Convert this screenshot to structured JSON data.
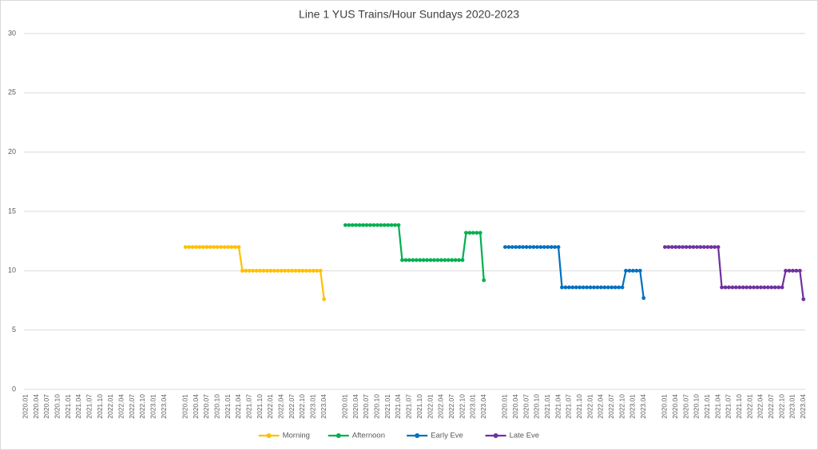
{
  "chart_data": {
    "type": "line",
    "title": "Line 1 YUS Trains/Hour Sundays 2020-2023",
    "categories": [
      "2020.01",
      null,
      null,
      "2020.04",
      null,
      null,
      "2020.07",
      null,
      null,
      "2020.10",
      null,
      null,
      "2021.01",
      null,
      null,
      "2021.04",
      null,
      null,
      "2021.07",
      null,
      null,
      "2021.10",
      null,
      null,
      "2022.01",
      null,
      null,
      "2022.04",
      null,
      null,
      "2022.07",
      null,
      null,
      "2022.10",
      null,
      null,
      "2023.01",
      null,
      null,
      "2023.04",
      null,
      null,
      null,
      null,
      null,
      "2020.01",
      null,
      null,
      "2020.04",
      null,
      null,
      "2020.07",
      null,
      null,
      "2020.10",
      null,
      null,
      "2021.01",
      null,
      null,
      "2021.04",
      null,
      null,
      "2021.07",
      null,
      null,
      "2021.10",
      null,
      null,
      "2022.01",
      null,
      null,
      "2022.04",
      null,
      null,
      "2022.07",
      null,
      null,
      "2022.10",
      null,
      null,
      "2023.01",
      null,
      null,
      "2023.04",
      null,
      null,
      null,
      null,
      null,
      "2020.01",
      null,
      null,
      "2020.04",
      null,
      null,
      "2020.07",
      null,
      null,
      "2020.10",
      null,
      null,
      "2021.01",
      null,
      null,
      "2021.04",
      null,
      null,
      "2021.07",
      null,
      null,
      "2021.10",
      null,
      null,
      "2022.01",
      null,
      null,
      "2022.04",
      null,
      null,
      "2022.07",
      null,
      null,
      "2022.10",
      null,
      null,
      "2023.01",
      null,
      null,
      "2023.04",
      null,
      null,
      null,
      null,
      null,
      "2020.01",
      null,
      null,
      "2020.04",
      null,
      null,
      "2020.07",
      null,
      null,
      "2020.10",
      null,
      null,
      "2021.01",
      null,
      null,
      "2021.04",
      null,
      null,
      "2021.07",
      null,
      null,
      "2021.10",
      null,
      null,
      "2022.01",
      null,
      null,
      "2022.04",
      null,
      null,
      "2022.07",
      null,
      null,
      "2022.10",
      null,
      null,
      "2023.01",
      null,
      null,
      "2023.04",
      null,
      null,
      null,
      null,
      null,
      "2020.01",
      null,
      null,
      "2020.04",
      null,
      null,
      "2020.07",
      null,
      null,
      "2020.10",
      null,
      null,
      "2021.01",
      null,
      null,
      "2021.04",
      null,
      null,
      "2021.07",
      null,
      null,
      "2021.10",
      null,
      null,
      "2022.01",
      null,
      null,
      "2022.04",
      null,
      null,
      "2022.07",
      null,
      null,
      "2022.10",
      null,
      null,
      "2023.01",
      null,
      null,
      "2023.04"
    ],
    "series": [
      {
        "name": "Morning",
        "color": "#FFC000",
        "values": [
          null,
          null,
          null,
          null,
          null,
          null,
          null,
          null,
          null,
          null,
          null,
          null,
          null,
          null,
          null,
          null,
          null,
          null,
          null,
          null,
          null,
          null,
          null,
          null,
          null,
          null,
          null,
          null,
          null,
          null,
          null,
          null,
          null,
          null,
          null,
          null,
          null,
          null,
          null,
          null,
          null,
          null,
          null,
          null,
          null,
          12,
          12,
          12,
          12,
          12,
          12,
          12,
          12,
          12,
          12,
          12,
          12,
          12,
          12,
          12,
          12,
          10,
          10,
          10,
          10,
          10,
          10,
          10,
          10,
          10,
          10,
          10,
          10,
          10,
          10,
          10,
          10,
          10,
          10,
          10,
          10,
          10,
          10,
          10,
          7.6,
          null,
          null,
          null,
          null,
          null,
          null,
          null,
          null,
          null,
          null,
          null,
          null,
          null,
          null,
          null,
          null,
          null,
          null,
          null,
          null,
          null,
          null,
          null,
          null,
          null,
          null,
          null,
          null,
          null,
          null,
          null,
          null,
          null,
          null,
          null,
          null,
          null,
          null,
          null,
          null,
          null,
          null,
          null,
          null,
          null,
          null,
          null,
          null,
          null,
          null,
          null,
          null,
          null,
          null,
          null,
          null,
          null,
          null,
          null,
          null,
          null,
          null,
          null,
          null,
          null,
          null,
          null,
          null,
          null,
          null,
          null,
          null,
          null,
          null,
          null,
          null,
          null,
          null,
          null,
          null,
          null,
          null,
          null,
          null,
          null,
          null,
          null,
          null,
          null,
          null,
          null,
          null,
          null,
          null,
          null,
          null,
          null,
          null,
          null,
          null,
          null,
          null,
          null,
          null,
          null,
          null,
          null,
          null,
          null,
          null,
          null,
          null,
          null,
          null,
          null,
          null,
          null,
          null,
          null,
          null,
          null,
          null,
          null,
          null,
          null,
          null,
          null,
          null,
          null,
          null,
          null,
          null,
          null,
          null,
          null
        ]
      },
      {
        "name": "Afternoon",
        "color": "#00B050",
        "values": [
          null,
          null,
          null,
          null,
          null,
          null,
          null,
          null,
          null,
          null,
          null,
          null,
          null,
          null,
          null,
          null,
          null,
          null,
          null,
          null,
          null,
          null,
          null,
          null,
          null,
          null,
          null,
          null,
          null,
          null,
          null,
          null,
          null,
          null,
          null,
          null,
          null,
          null,
          null,
          null,
          null,
          null,
          null,
          null,
          null,
          null,
          null,
          null,
          null,
          null,
          null,
          null,
          null,
          null,
          null,
          null,
          null,
          null,
          null,
          null,
          null,
          null,
          null,
          null,
          null,
          null,
          null,
          null,
          null,
          null,
          null,
          null,
          null,
          null,
          null,
          null,
          null,
          null,
          null,
          null,
          null,
          null,
          null,
          null,
          null,
          null,
          null,
          null,
          null,
          null,
          13.85,
          13.85,
          13.85,
          13.85,
          13.85,
          13.85,
          13.85,
          13.85,
          13.85,
          13.85,
          13.85,
          13.85,
          13.85,
          13.85,
          13.85,
          13.85,
          10.9,
          10.9,
          10.9,
          10.9,
          10.9,
          10.9,
          10.9,
          10.9,
          10.9,
          10.9,
          10.9,
          10.9,
          10.9,
          10.9,
          10.9,
          10.9,
          10.9,
          10.9,
          13.2,
          13.2,
          13.2,
          13.2,
          13.2,
          9.2,
          null,
          null,
          null,
          null,
          null,
          null,
          null,
          null,
          null,
          null,
          null,
          null,
          null,
          null,
          null,
          null,
          null,
          null,
          null,
          null,
          null,
          null,
          null,
          null,
          null,
          null,
          null,
          null,
          null,
          null,
          null,
          null,
          null,
          null,
          null,
          null,
          null,
          null,
          null,
          null,
          null,
          null,
          null,
          null,
          null,
          null,
          null,
          null,
          null,
          null,
          null,
          null,
          null,
          null,
          null,
          null,
          null,
          null,
          null,
          null,
          null,
          null,
          null,
          null,
          null,
          null,
          null,
          null,
          null,
          null,
          null,
          null,
          null,
          null,
          null,
          null,
          null,
          null,
          null,
          null,
          null,
          null,
          null,
          null,
          null,
          null,
          null,
          null,
          null,
          null
        ]
      },
      {
        "name": "Early Eve",
        "color": "#0070C0",
        "values": [
          null,
          null,
          null,
          null,
          null,
          null,
          null,
          null,
          null,
          null,
          null,
          null,
          null,
          null,
          null,
          null,
          null,
          null,
          null,
          null,
          null,
          null,
          null,
          null,
          null,
          null,
          null,
          null,
          null,
          null,
          null,
          null,
          null,
          null,
          null,
          null,
          null,
          null,
          null,
          null,
          null,
          null,
          null,
          null,
          null,
          null,
          null,
          null,
          null,
          null,
          null,
          null,
          null,
          null,
          null,
          null,
          null,
          null,
          null,
          null,
          null,
          null,
          null,
          null,
          null,
          null,
          null,
          null,
          null,
          null,
          null,
          null,
          null,
          null,
          null,
          null,
          null,
          null,
          null,
          null,
          null,
          null,
          null,
          null,
          null,
          null,
          null,
          null,
          null,
          null,
          null,
          null,
          null,
          null,
          null,
          null,
          null,
          null,
          null,
          null,
          null,
          null,
          null,
          null,
          null,
          null,
          null,
          null,
          null,
          null,
          null,
          null,
          null,
          null,
          null,
          null,
          null,
          null,
          null,
          null,
          null,
          null,
          null,
          null,
          null,
          null,
          null,
          null,
          null,
          null,
          null,
          null,
          null,
          null,
          null,
          12,
          12,
          12,
          12,
          12,
          12,
          12,
          12,
          12,
          12,
          12,
          12,
          12,
          12,
          12,
          12,
          8.6,
          8.6,
          8.6,
          8.6,
          8.6,
          8.6,
          8.6,
          8.6,
          8.6,
          8.6,
          8.6,
          8.6,
          8.6,
          8.6,
          8.6,
          8.6,
          8.6,
          8.6,
          10,
          10,
          10,
          10,
          10,
          7.7,
          null,
          null,
          null,
          null,
          null,
          null,
          null,
          null,
          null,
          null,
          null,
          null,
          null,
          null,
          null,
          null,
          null,
          null,
          null,
          null,
          null,
          null,
          null,
          null,
          null,
          null,
          null,
          null,
          null,
          null,
          null,
          null,
          null,
          null,
          null,
          null,
          null,
          null,
          null,
          null,
          null,
          null,
          null,
          null,
          null
        ]
      },
      {
        "name": "Late Eve",
        "color": "#7030A0",
        "values": [
          null,
          null,
          null,
          null,
          null,
          null,
          null,
          null,
          null,
          null,
          null,
          null,
          null,
          null,
          null,
          null,
          null,
          null,
          null,
          null,
          null,
          null,
          null,
          null,
          null,
          null,
          null,
          null,
          null,
          null,
          null,
          null,
          null,
          null,
          null,
          null,
          null,
          null,
          null,
          null,
          null,
          null,
          null,
          null,
          null,
          null,
          null,
          null,
          null,
          null,
          null,
          null,
          null,
          null,
          null,
          null,
          null,
          null,
          null,
          null,
          null,
          null,
          null,
          null,
          null,
          null,
          null,
          null,
          null,
          null,
          null,
          null,
          null,
          null,
          null,
          null,
          null,
          null,
          null,
          null,
          null,
          null,
          null,
          null,
          null,
          null,
          null,
          null,
          null,
          null,
          null,
          null,
          null,
          null,
          null,
          null,
          null,
          null,
          null,
          null,
          null,
          null,
          null,
          null,
          null,
          null,
          null,
          null,
          null,
          null,
          null,
          null,
          null,
          null,
          null,
          null,
          null,
          null,
          null,
          null,
          null,
          null,
          null,
          null,
          null,
          null,
          null,
          null,
          null,
          null,
          null,
          null,
          null,
          null,
          null,
          null,
          null,
          null,
          null,
          null,
          null,
          null,
          null,
          null,
          null,
          null,
          null,
          null,
          null,
          null,
          null,
          null,
          null,
          null,
          null,
          null,
          null,
          null,
          null,
          null,
          null,
          null,
          null,
          null,
          null,
          null,
          null,
          null,
          null,
          null,
          null,
          null,
          null,
          null,
          null,
          null,
          null,
          null,
          null,
          null,
          12,
          12,
          12,
          12,
          12,
          12,
          12,
          12,
          12,
          12,
          12,
          12,
          12,
          12,
          12,
          12,
          8.6,
          8.6,
          8.6,
          8.6,
          8.6,
          8.6,
          8.6,
          8.6,
          8.6,
          8.6,
          8.6,
          8.6,
          8.6,
          8.6,
          8.6,
          8.6,
          8.6,
          8.6,
          10,
          10,
          10,
          10,
          10,
          7.6
        ]
      }
    ],
    "ylim": [
      0,
      30
    ],
    "yticks": [
      0,
      5,
      10,
      15,
      20,
      25,
      30
    ],
    "grid": true,
    "legend": "bottom"
  }
}
